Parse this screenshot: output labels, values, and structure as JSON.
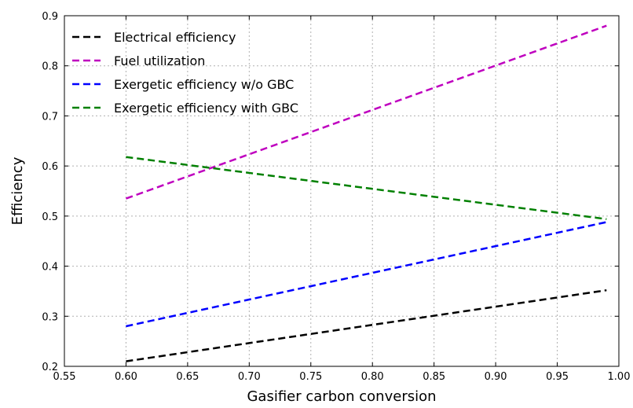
{
  "chart_data": {
    "type": "line",
    "title": "",
    "xlabel": "Gasifier carbon conversion",
    "ylabel": "Efficiency",
    "xlim": [
      0.55,
      1.0
    ],
    "ylim": [
      0.2,
      0.9
    ],
    "xticks": [
      "0.55",
      "0.60",
      "0.65",
      "0.70",
      "0.75",
      "0.80",
      "0.85",
      "0.90",
      "0.95",
      "1.00"
    ],
    "yticks": [
      "0.2",
      "0.3",
      "0.4",
      "0.5",
      "0.6",
      "0.7",
      "0.8",
      "0.9"
    ],
    "grid": true,
    "legend_position": "top-left",
    "line_style": "dashed",
    "series": [
      {
        "name": "Electrical efficiency",
        "color": "#000000",
        "x": [
          0.6,
          0.99
        ],
        "y": [
          0.21,
          0.352
        ]
      },
      {
        "name": "Fuel utilization",
        "color": "#bf00bf",
        "x": [
          0.6,
          0.99
        ],
        "y": [
          0.535,
          0.88
        ]
      },
      {
        "name": "Exergetic efficiency w/o GBC",
        "color": "#0000ff",
        "x": [
          0.6,
          0.99
        ],
        "y": [
          0.28,
          0.488
        ]
      },
      {
        "name": "Exergetic efficiency with GBC",
        "color": "#008000",
        "x": [
          0.6,
          0.99
        ],
        "y": [
          0.618,
          0.494
        ]
      }
    ]
  }
}
